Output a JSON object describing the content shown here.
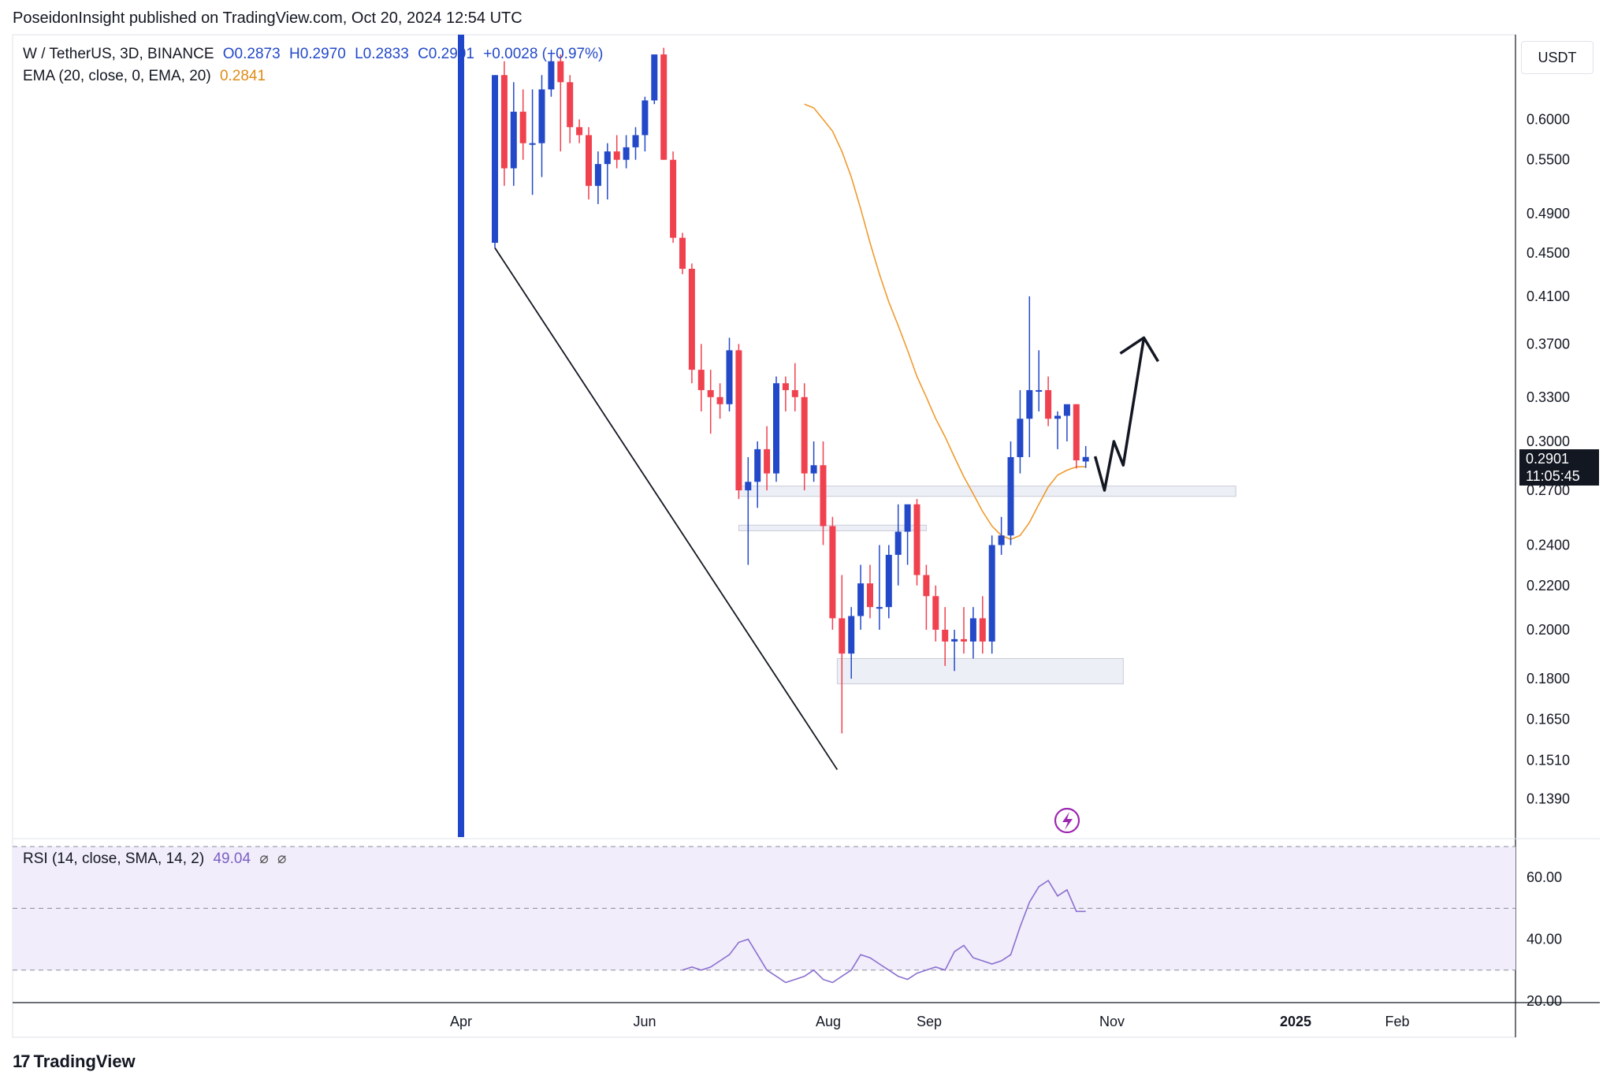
{
  "header": {
    "text": "PoseidonInsight published on TradingView.com, Oct 20, 2024 12:54 UTC"
  },
  "legend": {
    "symbol": "W / TetherUS, 3D, BINANCE",
    "open": "O0.2873",
    "high": "H0.2970",
    "low": "L0.2833",
    "close": "C0.2901",
    "change": "+0.0028 (+0.97%)",
    "ema_label": "EMA (20, close, 0, EMA, 20)",
    "ema_value": "0.2841",
    "rsi_label": "RSI (14, close, SMA, 14, 2)",
    "rsi_value": "49.04",
    "rsi_extra1": "⌀",
    "rsi_extra2": "⌀"
  },
  "price_axis": {
    "unit": "USDT",
    "current_price": "0.2901",
    "countdown": "11:05:45"
  },
  "footer": {
    "brand": "TradingView",
    "logo_mark": "17"
  },
  "colors": {
    "up": "#2349c9",
    "down": "#f0414f",
    "ema": "#f09a2e",
    "rsi": "#8a6fcf",
    "rsi_band": "#f1edfb",
    "zone": "#e6e8f2",
    "vline": "#1f45c8",
    "flash_icon": "#9c27b0"
  },
  "chart_data": [
    {
      "type": "candlestick",
      "title": "W / TetherUS, 3D, BINANCE",
      "scale": "log",
      "ylim": [
        0.128,
        0.72
      ],
      "y_ticks": [
        "0.6000",
        "0.5500",
        "0.4900",
        "0.4500",
        "0.4100",
        "0.3700",
        "0.3300",
        "0.3000",
        "0.2700",
        "0.2400",
        "0.2200",
        "0.2000",
        "0.1800",
        "0.1650",
        "0.1510",
        "0.1390"
      ],
      "x_ticks": [
        "Apr",
        "Jun",
        "Aug",
        "Sep",
        "Nov",
        "2025",
        "Feb"
      ],
      "candles": [
        {
          "o": 0.46,
          "h": 0.66,
          "l": 0.455,
          "c": 0.66
        },
        {
          "o": 0.66,
          "h": 0.68,
          "l": 0.52,
          "c": 0.54
        },
        {
          "o": 0.54,
          "h": 0.65,
          "l": 0.52,
          "c": 0.61
        },
        {
          "o": 0.61,
          "h": 0.64,
          "l": 0.55,
          "c": 0.57
        },
        {
          "o": 0.57,
          "h": 0.64,
          "l": 0.51,
          "c": 0.57
        },
        {
          "o": 0.57,
          "h": 0.66,
          "l": 0.53,
          "c": 0.64
        },
        {
          "o": 0.64,
          "h": 0.69,
          "l": 0.63,
          "c": 0.68
        },
        {
          "o": 0.68,
          "h": 0.69,
          "l": 0.56,
          "c": 0.65
        },
        {
          "o": 0.65,
          "h": 0.66,
          "l": 0.57,
          "c": 0.59
        },
        {
          "o": 0.59,
          "h": 0.6,
          "l": 0.57,
          "c": 0.58
        },
        {
          "o": 0.58,
          "h": 0.59,
          "l": 0.505,
          "c": 0.52
        },
        {
          "o": 0.52,
          "h": 0.56,
          "l": 0.5,
          "c": 0.545
        },
        {
          "o": 0.545,
          "h": 0.57,
          "l": 0.505,
          "c": 0.56
        },
        {
          "o": 0.56,
          "h": 0.58,
          "l": 0.54,
          "c": 0.55
        },
        {
          "o": 0.55,
          "h": 0.58,
          "l": 0.54,
          "c": 0.565
        },
        {
          "o": 0.565,
          "h": 0.59,
          "l": 0.55,
          "c": 0.58
        },
        {
          "o": 0.58,
          "h": 0.63,
          "l": 0.56,
          "c": 0.625
        },
        {
          "o": 0.625,
          "h": 0.69,
          "l": 0.62,
          "c": 0.69
        },
        {
          "o": 0.69,
          "h": 0.7,
          "l": 0.55,
          "c": 0.55
        },
        {
          "o": 0.55,
          "h": 0.56,
          "l": 0.46,
          "c": 0.465
        },
        {
          "o": 0.465,
          "h": 0.47,
          "l": 0.43,
          "c": 0.435
        },
        {
          "o": 0.435,
          "h": 0.44,
          "l": 0.34,
          "c": 0.35
        },
        {
          "o": 0.35,
          "h": 0.37,
          "l": 0.32,
          "c": 0.335
        },
        {
          "o": 0.335,
          "h": 0.35,
          "l": 0.305,
          "c": 0.33
        },
        {
          "o": 0.33,
          "h": 0.34,
          "l": 0.315,
          "c": 0.325
        },
        {
          "o": 0.325,
          "h": 0.375,
          "l": 0.32,
          "c": 0.365
        },
        {
          "o": 0.365,
          "h": 0.37,
          "l": 0.265,
          "c": 0.27
        },
        {
          "o": 0.27,
          "h": 0.29,
          "l": 0.23,
          "c": 0.275
        },
        {
          "o": 0.275,
          "h": 0.3,
          "l": 0.26,
          "c": 0.295
        },
        {
          "o": 0.295,
          "h": 0.31,
          "l": 0.27,
          "c": 0.28
        },
        {
          "o": 0.28,
          "h": 0.345,
          "l": 0.275,
          "c": 0.34
        },
        {
          "o": 0.34,
          "h": 0.345,
          "l": 0.32,
          "c": 0.335
        },
        {
          "o": 0.335,
          "h": 0.355,
          "l": 0.32,
          "c": 0.33
        },
        {
          "o": 0.33,
          "h": 0.34,
          "l": 0.27,
          "c": 0.28
        },
        {
          "o": 0.28,
          "h": 0.3,
          "l": 0.275,
          "c": 0.285
        },
        {
          "o": 0.285,
          "h": 0.3,
          "l": 0.24,
          "c": 0.25
        },
        {
          "o": 0.25,
          "h": 0.255,
          "l": 0.2,
          "c": 0.205
        },
        {
          "o": 0.205,
          "h": 0.225,
          "l": 0.16,
          "c": 0.19
        },
        {
          "o": 0.19,
          "h": 0.21,
          "l": 0.18,
          "c": 0.206
        },
        {
          "o": 0.206,
          "h": 0.23,
          "l": 0.2,
          "c": 0.221
        },
        {
          "o": 0.221,
          "h": 0.23,
          "l": 0.205,
          "c": 0.21
        },
        {
          "o": 0.21,
          "h": 0.24,
          "l": 0.2,
          "c": 0.21
        },
        {
          "o": 0.21,
          "h": 0.24,
          "l": 0.205,
          "c": 0.235
        },
        {
          "o": 0.235,
          "h": 0.262,
          "l": 0.22,
          "c": 0.247
        },
        {
          "o": 0.247,
          "h": 0.26,
          "l": 0.23,
          "c": 0.262
        },
        {
          "o": 0.262,
          "h": 0.265,
          "l": 0.22,
          "c": 0.225
        },
        {
          "o": 0.225,
          "h": 0.23,
          "l": 0.2,
          "c": 0.215
        },
        {
          "o": 0.215,
          "h": 0.22,
          "l": 0.195,
          "c": 0.2
        },
        {
          "o": 0.2,
          "h": 0.21,
          "l": 0.185,
          "c": 0.195
        },
        {
          "o": 0.195,
          "h": 0.2,
          "l": 0.183,
          "c": 0.196
        },
        {
          "o": 0.196,
          "h": 0.21,
          "l": 0.19,
          "c": 0.195
        },
        {
          "o": 0.195,
          "h": 0.21,
          "l": 0.188,
          "c": 0.205
        },
        {
          "o": 0.205,
          "h": 0.215,
          "l": 0.19,
          "c": 0.195
        },
        {
          "o": 0.195,
          "h": 0.245,
          "l": 0.19,
          "c": 0.24
        },
        {
          "o": 0.24,
          "h": 0.255,
          "l": 0.235,
          "c": 0.245
        },
        {
          "o": 0.245,
          "h": 0.3,
          "l": 0.24,
          "c": 0.29
        },
        {
          "o": 0.29,
          "h": 0.335,
          "l": 0.28,
          "c": 0.315
        },
        {
          "o": 0.315,
          "h": 0.41,
          "l": 0.29,
          "c": 0.335
        },
        {
          "o": 0.335,
          "h": 0.365,
          "l": 0.32,
          "c": 0.335
        },
        {
          "o": 0.335,
          "h": 0.345,
          "l": 0.31,
          "c": 0.315
        },
        {
          "o": 0.315,
          "h": 0.32,
          "l": 0.295,
          "c": 0.317
        },
        {
          "o": 0.317,
          "h": 0.32,
          "l": 0.3,
          "c": 0.325
        },
        {
          "o": 0.325,
          "h": 0.325,
          "l": 0.283,
          "c": 0.288
        },
        {
          "o": 0.2873,
          "h": 0.297,
          "l": 0.2833,
          "c": 0.2901
        }
      ],
      "ema": [
        0.62,
        0.615,
        0.6,
        0.585,
        0.56,
        0.53,
        0.495,
        0.46,
        0.43,
        0.405,
        0.385,
        0.365,
        0.345,
        0.33,
        0.315,
        0.303,
        0.29,
        0.278,
        0.268,
        0.258,
        0.25,
        0.245,
        0.243,
        0.245,
        0.252,
        0.262,
        0.272,
        0.279,
        0.282,
        0.284,
        0.2841
      ],
      "annotations": {
        "trendline": {
          "from_idx": 0,
          "from_price": 0.455,
          "to_idx": 36.5,
          "to_price": 0.148
        },
        "zones": [
          {
            "from_idx": 26,
            "to_idx": 79,
            "low": 0.2665,
            "high": 0.2725
          },
          {
            "from_idx": 26,
            "to_idx": 46,
            "low": 0.2475,
            "high": 0.2505
          },
          {
            "from_idx": 36.5,
            "to_idx": 67,
            "low": 0.178,
            "high": 0.188
          }
        ],
        "projection": [
          [
            0.2905,
            0.292
          ],
          [
            0.27,
            0.277
          ],
          [
            0.3,
            0.297
          ],
          [
            0.285,
            0.3
          ],
          [
            0.375,
            0.371
          ]
        ]
      }
    },
    {
      "type": "line",
      "title": "RSI (14, close, SMA, 14, 2)",
      "ylim": [
        20,
        70
      ],
      "y_ticks": [
        "60.00",
        "40.00",
        "20.00"
      ],
      "band": [
        30,
        70
      ],
      "middle": 50,
      "values": [
        30,
        31,
        30,
        31,
        33,
        35,
        39,
        40,
        35,
        30,
        28,
        26,
        27,
        28,
        30,
        27,
        26,
        28,
        30,
        35,
        34,
        32,
        30,
        28,
        27,
        29,
        30,
        31,
        30,
        36,
        38,
        34,
        33,
        32,
        33,
        35,
        44,
        52,
        57,
        59,
        54,
        56,
        49,
        49
      ]
    }
  ]
}
